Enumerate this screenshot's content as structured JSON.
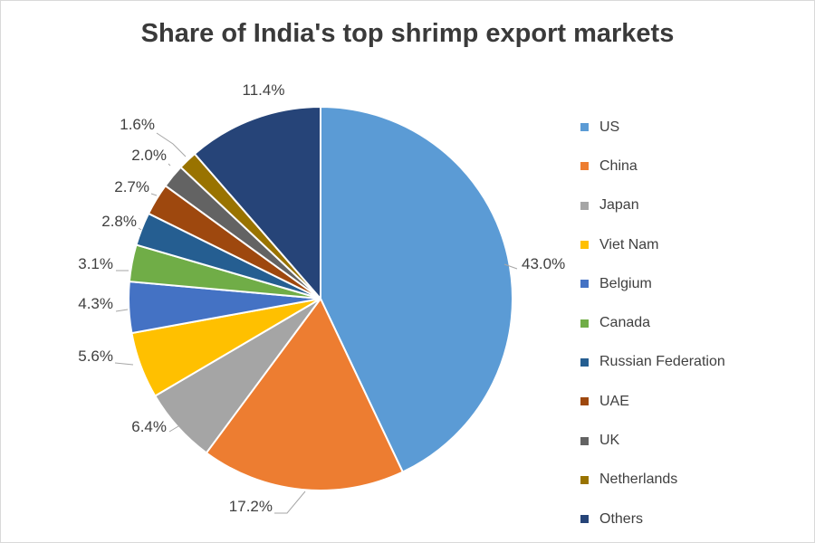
{
  "chart_data": {
    "type": "pie",
    "title": "Share of India's top shrimp export markets",
    "legend_position": "right",
    "slices": [
      {
        "label": "US",
        "value": 43.0,
        "display": "43.0%",
        "color": "#5b9bd5"
      },
      {
        "label": "China",
        "value": 17.2,
        "display": "17.2%",
        "color": "#ed7d31"
      },
      {
        "label": "Japan",
        "value": 6.4,
        "display": "6.4%",
        "color": "#a5a5a5"
      },
      {
        "label": "Viet Nam",
        "value": 5.6,
        "display": "5.6%",
        "color": "#ffc000"
      },
      {
        "label": "Belgium",
        "value": 4.3,
        "display": "4.3%",
        "color": "#4472c4"
      },
      {
        "label": "Canada",
        "value": 3.1,
        "display": "3.1%",
        "color": "#70ad47"
      },
      {
        "label": "Russian Federation",
        "value": 2.8,
        "display": "2.8%",
        "color": "#255e91"
      },
      {
        "label": "UAE",
        "value": 2.7,
        "display": "2.7%",
        "color": "#9e480e"
      },
      {
        "label": "UK",
        "value": 2.0,
        "display": "2.0%",
        "color": "#636363"
      },
      {
        "label": "Netherlands",
        "value": 1.6,
        "display": "1.6%",
        "color": "#997300"
      },
      {
        "label": "Others",
        "value": 11.4,
        "display": "11.4%",
        "color": "#264478"
      }
    ]
  }
}
